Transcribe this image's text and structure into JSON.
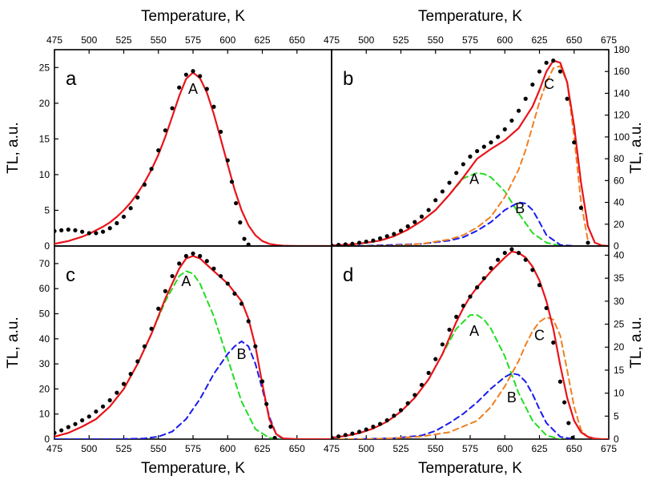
{
  "chart_data": [
    {
      "type": "line",
      "panel": "a",
      "x_axis_label_top": "Temperature, K",
      "ylabel": "TL, a.u.",
      "y_axis_side": "left",
      "xlim": [
        475,
        675
      ],
      "ylim": [
        0,
        27.5
      ],
      "x_ticks": [
        "475",
        "500",
        "525",
        "550",
        "575",
        "600",
        "625",
        "650"
      ],
      "y_ticks": [
        "0",
        "5",
        "10",
        "15",
        "20",
        "25"
      ],
      "y_tick_values": [
        0,
        5,
        10,
        15,
        20,
        25
      ],
      "peak_labels": [
        {
          "text": "A",
          "x": 575,
          "y": 21.3
        }
      ],
      "series": [
        {
          "role": "experimental",
          "color": "#000000",
          "style": "dots",
          "x": [
            475,
            480,
            485,
            490,
            495,
            500,
            505,
            510,
            515,
            520,
            525,
            530,
            535,
            540,
            545,
            550,
            555,
            560,
            565,
            570,
            575,
            580,
            585,
            590,
            595,
            600,
            603,
            606,
            609,
            612,
            615
          ],
          "y": [
            2.1,
            2.2,
            2.3,
            2.2,
            2.0,
            1.8,
            1.8,
            2.0,
            2.5,
            3.2,
            4.1,
            5.3,
            6.8,
            8.6,
            10.8,
            13.4,
            16.2,
            19.3,
            22.2,
            24.0,
            24.5,
            23.8,
            22.0,
            19.5,
            16.0,
            12.0,
            9.0,
            6.0,
            3.3,
            1.0,
            0.2
          ]
        },
        {
          "role": "fit",
          "color": "#e8141b",
          "style": "solid",
          "x": [
            475,
            480,
            485,
            490,
            495,
            500,
            505,
            510,
            515,
            520,
            525,
            530,
            535,
            540,
            545,
            550,
            555,
            560,
            565,
            570,
            575,
            580,
            585,
            590,
            595,
            600,
            605,
            610,
            615,
            620,
            625,
            630,
            635,
            640,
            645,
            650,
            660,
            675
          ],
          "y": [
            0.3,
            0.5,
            0.7,
            1.0,
            1.3,
            1.7,
            2.2,
            2.7,
            3.3,
            4.1,
            5.0,
            6.1,
            7.4,
            8.9,
            10.7,
            12.8,
            15.3,
            18.1,
            21.0,
            23.4,
            24.3,
            23.5,
            21.5,
            18.5,
            15.0,
            11.4,
            7.9,
            5.0,
            2.9,
            1.5,
            0.7,
            0.3,
            0.15,
            0.05,
            0.02,
            0,
            0,
            0
          ]
        }
      ]
    },
    {
      "type": "line",
      "panel": "b",
      "x_axis_label_top": "Temperature, K",
      "ylabel": "TL, a.u.",
      "y_axis_side": "right",
      "xlim": [
        475,
        675
      ],
      "ylim": [
        0,
        180
      ],
      "x_ticks": [
        "475",
        "500",
        "525",
        "550",
        "575",
        "600",
        "625",
        "650",
        "675"
      ],
      "y_ticks": [
        "0",
        "20",
        "40",
        "60",
        "80",
        "100",
        "120",
        "140",
        "160",
        "180"
      ],
      "y_tick_values": [
        0,
        20,
        40,
        60,
        80,
        100,
        120,
        140,
        160,
        180
      ],
      "peak_labels": [
        {
          "text": "A",
          "x": 578,
          "y": 57
        },
        {
          "text": "B",
          "x": 611,
          "y": 30
        },
        {
          "text": "C",
          "x": 632,
          "y": 144
        }
      ],
      "series": [
        {
          "role": "experimental",
          "color": "#000000",
          "style": "dots",
          "x": [
            475,
            480,
            485,
            490,
            495,
            500,
            505,
            510,
            515,
            520,
            525,
            530,
            535,
            540,
            545,
            550,
            555,
            560,
            565,
            570,
            575,
            580,
            585,
            590,
            595,
            600,
            605,
            610,
            615,
            620,
            625,
            630,
            635,
            640,
            645,
            650,
            655,
            660
          ],
          "y": [
            0.5,
            1,
            1.5,
            2,
            3,
            4,
            5,
            7,
            9,
            11,
            14,
            18,
            22,
            27,
            33,
            42,
            50,
            58,
            67,
            75,
            82,
            87,
            91,
            95,
            100,
            107,
            115,
            124,
            135,
            148,
            160,
            168,
            170,
            160,
            135,
            95,
            35,
            3
          ]
        },
        {
          "role": "fit",
          "color": "#e8141b",
          "style": "solid",
          "x": [
            475,
            480,
            490,
            500,
            510,
            520,
            530,
            540,
            550,
            560,
            570,
            580,
            590,
            600,
            610,
            620,
            625,
            630,
            635,
            640,
            645,
            650,
            655,
            660,
            665,
            670,
            675
          ],
          "y": [
            0.5,
            0.8,
            1.5,
            3,
            5,
            9,
            15,
            23,
            33,
            47,
            63,
            80,
            89,
            97,
            108,
            128,
            143,
            160,
            170,
            168,
            150,
            110,
            58,
            18,
            3,
            0.5,
            0
          ]
        },
        {
          "role": "component A",
          "color": "#22dd22",
          "style": "dashed",
          "x": [
            475,
            490,
            500,
            510,
            520,
            530,
            540,
            550,
            560,
            570,
            580,
            585,
            590,
            600,
            610,
            620,
            630,
            640
          ],
          "y": [
            0.5,
            1.5,
            3,
            5,
            9,
            15,
            23,
            33,
            47,
            62,
            67,
            66,
            63,
            50,
            30,
            12,
            3,
            0.3
          ]
        },
        {
          "role": "component B",
          "color": "#1a1aee",
          "style": "dashed",
          "x": [
            480,
            500,
            520,
            540,
            560,
            570,
            580,
            590,
            600,
            610,
            615,
            620,
            625,
            630,
            640,
            650
          ],
          "y": [
            0,
            0.2,
            1,
            2,
            5,
            8,
            14,
            22,
            33,
            40,
            39,
            33,
            22,
            10,
            1,
            0
          ]
        },
        {
          "role": "component C",
          "color": "#f07f20",
          "style": "dashed",
          "x": [
            500,
            520,
            540,
            560,
            570,
            580,
            590,
            600,
            610,
            615,
            620,
            625,
            630,
            635,
            640,
            645,
            650,
            655,
            660
          ],
          "y": [
            0,
            0.3,
            2,
            6,
            10,
            17,
            27,
            45,
            70,
            88,
            110,
            132,
            150,
            163,
            165,
            150,
            100,
            40,
            5
          ]
        }
      ]
    },
    {
      "type": "line",
      "panel": "c",
      "xlabel": "Temperature, K",
      "ylabel": "TL, a.u.",
      "y_axis_side": "left",
      "xlim": [
        475,
        675
      ],
      "ylim": [
        0,
        77
      ],
      "x_ticks": [
        "475",
        "500",
        "525",
        "550",
        "575",
        "600",
        "625",
        "650"
      ],
      "y_ticks": [
        "0",
        "10",
        "20",
        "30",
        "40",
        "50",
        "60",
        "70"
      ],
      "y_tick_values": [
        0,
        10,
        20,
        30,
        40,
        50,
        60,
        70
      ],
      "peak_labels": [
        {
          "text": "A",
          "x": 570,
          "y": 61
        },
        {
          "text": "B",
          "x": 610,
          "y": 32
        }
      ],
      "series": [
        {
          "role": "experimental",
          "color": "#000000",
          "style": "dots",
          "x": [
            475,
            480,
            485,
            490,
            495,
            500,
            505,
            510,
            515,
            520,
            525,
            530,
            535,
            540,
            545,
            550,
            555,
            560,
            565,
            570,
            575,
            580,
            585,
            590,
            595,
            600,
            605,
            610,
            615,
            620,
            625,
            628,
            631,
            634
          ],
          "y": [
            2.5,
            3.5,
            4.8,
            6.0,
            7.5,
            9.0,
            11,
            13,
            15.5,
            18.5,
            22,
            26,
            31,
            37,
            44,
            52,
            59,
            65,
            70,
            73,
            74,
            73,
            71,
            68,
            65,
            62,
            58,
            54,
            47,
            37,
            23,
            14,
            5,
            0.5
          ]
        },
        {
          "role": "fit",
          "color": "#e8141b",
          "style": "solid",
          "x": [
            475,
            485,
            495,
            505,
            515,
            525,
            535,
            545,
            555,
            565,
            570,
            575,
            580,
            590,
            600,
            610,
            615,
            620,
            625,
            630,
            635,
            640,
            650,
            660,
            675
          ],
          "y": [
            1.0,
            2.5,
            5,
            8,
            13,
            20,
            30,
            42,
            56,
            68,
            72,
            73,
            72,
            67,
            62,
            55,
            48,
            37,
            22,
            8,
            2,
            0.3,
            0,
            0,
            0
          ]
        },
        {
          "role": "component A",
          "color": "#22dd22",
          "style": "dashed",
          "x": [
            475,
            485,
            495,
            505,
            515,
            525,
            535,
            545,
            555,
            565,
            570,
            575,
            580,
            590,
            600,
            610,
            620,
            630,
            640
          ],
          "y": [
            1.0,
            2.5,
            5,
            8,
            13,
            20,
            30,
            42,
            55,
            65,
            67,
            66,
            62,
            49,
            32,
            15,
            4,
            0.5,
            0
          ]
        },
        {
          "role": "component B",
          "color": "#1a1aee",
          "style": "dashed",
          "x": [
            475,
            520,
            540,
            550,
            560,
            570,
            580,
            590,
            600,
            605,
            610,
            615,
            620,
            625,
            630,
            635,
            640
          ],
          "y": [
            0,
            0,
            0.3,
            1,
            3,
            8,
            16,
            26,
            34,
            37,
            39,
            37,
            30,
            20,
            9,
            2,
            0
          ]
        }
      ]
    },
    {
      "type": "line",
      "panel": "d",
      "xlabel": "Temperature, K",
      "ylabel": "TL, a.u.",
      "y_axis_side": "right",
      "xlim": [
        475,
        675
      ],
      "ylim": [
        0,
        42
      ],
      "x_ticks": [
        "475",
        "500",
        "525",
        "550",
        "575",
        "600",
        "625",
        "650",
        "675"
      ],
      "y_ticks": [
        "0",
        "5",
        "10",
        "15",
        "20",
        "25",
        "30",
        "35",
        "40"
      ],
      "y_tick_values": [
        0,
        5,
        10,
        15,
        20,
        25,
        30,
        35,
        40
      ],
      "peak_labels": [
        {
          "text": "A",
          "x": 578,
          "y": 22.5
        },
        {
          "text": "B",
          "x": 605,
          "y": 8
        },
        {
          "text": "C",
          "x": 625,
          "y": 21.5
        }
      ],
      "series": [
        {
          "role": "experimental",
          "color": "#000000",
          "style": "dots",
          "x": [
            475,
            480,
            485,
            490,
            495,
            500,
            505,
            510,
            515,
            520,
            525,
            530,
            535,
            540,
            545,
            550,
            555,
            560,
            565,
            570,
            575,
            580,
            585,
            590,
            595,
            600,
            605,
            610,
            615,
            620,
            625,
            630,
            635,
            640,
            643,
            646,
            649
          ],
          "y": [
            0.3,
            0.6,
            0.9,
            1.2,
            1.6,
            2.1,
            2.7,
            3.3,
            4.1,
            5.1,
            6.3,
            7.8,
            9.6,
            11.8,
            14.4,
            17.4,
            20.6,
            23.8,
            26.6,
            29.0,
            31.0,
            33.0,
            35.0,
            37.2,
            39.0,
            40.5,
            41.3,
            40.5,
            39.0,
            36.8,
            33.5,
            28.5,
            21,
            12.5,
            8,
            3.5,
            0.3
          ]
        },
        {
          "role": "fit",
          "color": "#e8141b",
          "style": "solid",
          "x": [
            475,
            485,
            495,
            505,
            515,
            525,
            535,
            545,
            555,
            560,
            565,
            570,
            575,
            580,
            590,
            600,
            605,
            610,
            615,
            620,
            625,
            630,
            635,
            640,
            645,
            650,
            655,
            660,
            665,
            670,
            675
          ],
          "y": [
            0.3,
            0.7,
            1.3,
            2.3,
            3.8,
            6.0,
            9.0,
            13.0,
            18.5,
            22,
            25.5,
            28.5,
            31,
            33,
            36.5,
            39.5,
            40.8,
            40.5,
            39.5,
            37.5,
            34.5,
            30,
            24,
            16,
            9,
            4,
            1.5,
            0.5,
            0.1,
            0,
            0
          ]
        },
        {
          "role": "component A",
          "color": "#22dd22",
          "style": "dashed",
          "x": [
            475,
            485,
            495,
            505,
            515,
            525,
            535,
            545,
            555,
            565,
            575,
            580,
            585,
            590,
            600,
            610,
            620,
            630,
            640
          ],
          "y": [
            0.3,
            0.7,
            1.3,
            2.3,
            3.8,
            6.0,
            9,
            13,
            18.5,
            24,
            27,
            27,
            26,
            24,
            18,
            10,
            4,
            0.8,
            0
          ]
        },
        {
          "role": "component B",
          "color": "#1a1aee",
          "style": "dashed",
          "x": [
            490,
            520,
            540,
            550,
            560,
            570,
            580,
            590,
            600,
            605,
            610,
            615,
            620,
            625,
            630,
            640,
            650
          ],
          "y": [
            0,
            0.2,
            0.8,
            1.8,
            3.5,
            5.5,
            8,
            11,
            13.5,
            14.3,
            14,
            12.5,
            9.8,
            6.5,
            3.5,
            0.5,
            0
          ]
        },
        {
          "role": "component C",
          "color": "#f07f20",
          "style": "dashed",
          "x": [
            480,
            500,
            520,
            540,
            560,
            580,
            590,
            600,
            610,
            615,
            620,
            625,
            630,
            635,
            640,
            645,
            650,
            655,
            660,
            665
          ],
          "y": [
            0,
            0,
            0.2,
            0.6,
            1.5,
            4,
            7,
            11.5,
            17,
            20.5,
            23.5,
            25.5,
            26.5,
            26,
            22.5,
            15,
            7,
            2,
            0.4,
            0
          ]
        }
      ]
    }
  ]
}
